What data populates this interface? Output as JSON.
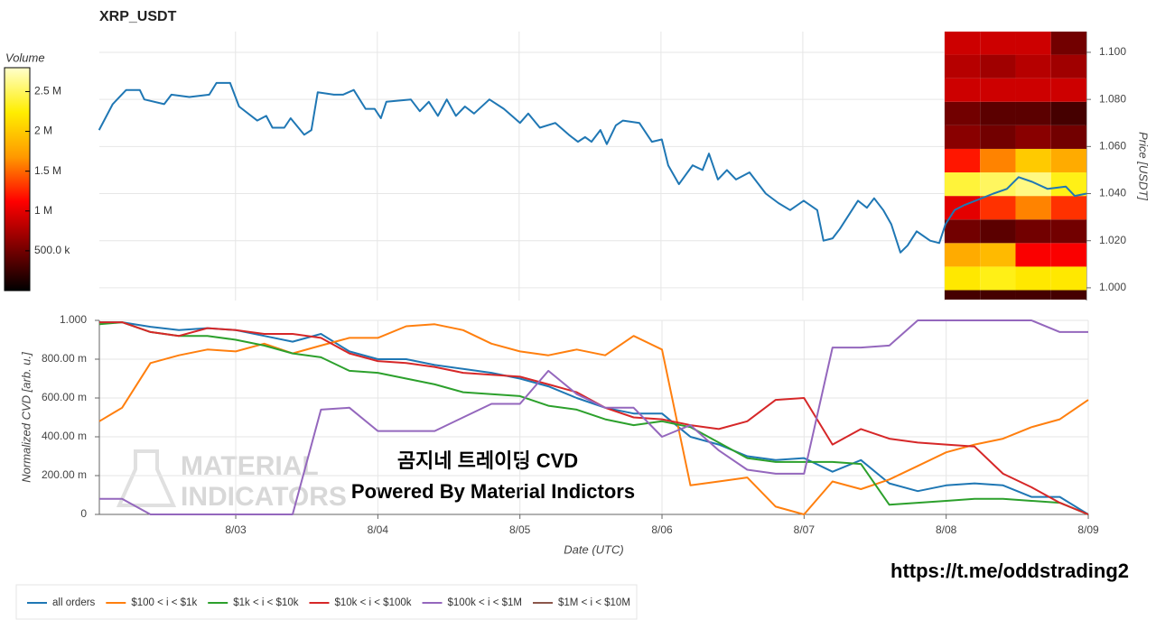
{
  "chart_data": [
    {
      "type": "line",
      "title": "XRP_USDT",
      "ylabel": "Price [USDT]",
      "color": "#1f77b4",
      "grid": true,
      "xlim": [
        2.04,
        9.0
      ],
      "ylim": [
        0.9946,
        1.1088
      ],
      "yticks": [
        {
          "value": 1.0,
          "label": "1.000"
        },
        {
          "value": 1.02,
          "label": "1.020"
        },
        {
          "value": 1.04,
          "label": "1.040"
        },
        {
          "value": 1.06,
          "label": "1.060"
        },
        {
          "value": 1.08,
          "label": "1.080"
        },
        {
          "value": 1.1,
          "label": "1.100"
        }
      ],
      "x": [
        2.038,
        2.134,
        2.229,
        2.325,
        2.357,
        2.497,
        2.548,
        2.675,
        2.815,
        2.866,
        2.962,
        3.025,
        3.153,
        3.217,
        3.261,
        3.344,
        3.389,
        3.484,
        3.535,
        3.58,
        3.694,
        3.758,
        3.834,
        3.917,
        3.981,
        4.025,
        4.064,
        4.236,
        4.299,
        4.363,
        4.427,
        4.49,
        4.554,
        4.618,
        4.682,
        4.79,
        4.892,
        5.006,
        5.064,
        5.146,
        5.255,
        5.35,
        5.414,
        5.465,
        5.51,
        5.573,
        5.618,
        5.682,
        5.732,
        5.847,
        5.936,
        6.006,
        6.051,
        6.127,
        6.223,
        6.293,
        6.338,
        6.401,
        6.465,
        6.529,
        6.624,
        6.739,
        6.828,
        6.911,
        7.006,
        7.102,
        7.146,
        7.21,
        7.261,
        7.389,
        7.452,
        7.503,
        7.567,
        7.624,
        7.688,
        7.739,
        7.803,
        7.898,
        7.962,
        8.006,
        8.07,
        8.134,
        8.217,
        8.344,
        8.439,
        8.522,
        8.618,
        8.726,
        8.854,
        8.917,
        9.0
      ],
      "values": [
        1.067,
        1.078,
        1.084,
        1.084,
        1.08,
        1.078,
        1.082,
        1.081,
        1.082,
        1.087,
        1.087,
        1.077,
        1.071,
        1.073,
        1.068,
        1.068,
        1.072,
        1.065,
        1.067,
        1.083,
        1.082,
        1.082,
        1.084,
        1.076,
        1.076,
        1.072,
        1.079,
        1.08,
        1.075,
        1.079,
        1.073,
        1.08,
        1.073,
        1.077,
        1.074,
        1.08,
        1.076,
        1.07,
        1.074,
        1.068,
        1.07,
        1.065,
        1.062,
        1.064,
        1.062,
        1.067,
        1.061,
        1.069,
        1.071,
        1.07,
        1.062,
        1.063,
        1.052,
        1.044,
        1.052,
        1.05,
        1.057,
        1.046,
        1.05,
        1.046,
        1.049,
        1.04,
        1.036,
        1.033,
        1.037,
        1.033,
        1.02,
        1.021,
        1.025,
        1.037,
        1.034,
        1.038,
        1.033,
        1.027,
        1.015,
        1.018,
        1.024,
        1.02,
        1.019,
        1.027,
        1.033,
        1.035,
        1.037,
        1.04,
        1.042,
        1.047,
        1.045,
        1.042,
        1.043,
        1.039,
        1.04
      ]
    },
    {
      "type": "heatmap",
      "colorbar_label": "Volume",
      "x_edges": [
        8.0,
        8.25,
        8.5,
        8.75,
        9.0
      ],
      "y_edges": [
        0.995,
        0.999,
        1.009,
        1.019,
        1.029,
        1.039,
        1.049,
        1.059,
        1.069,
        1.079,
        1.089,
        1.099,
        1.109
      ],
      "clim": [
        0,
        2800000
      ],
      "colormap": [
        "#000000",
        "#800000",
        "#ff0000",
        "#ff9900",
        "#ffee00",
        "#ffffcc"
      ],
      "cticks": [
        {
          "value": 500000,
          "label": "500.0 k"
        },
        {
          "value": 1000000,
          "label": "1 M"
        },
        {
          "value": 1500000,
          "label": "1.5 M"
        },
        {
          "value": 2000000,
          "label": "2 M"
        },
        {
          "value": 2500000,
          "label": "2.5 M"
        }
      ],
      "values": [
        [
          300000,
          300000,
          300000,
          300000
        ],
        [
          2200000,
          2300000,
          2200000,
          2200000
        ],
        [
          1800000,
          1900000,
          1100000,
          1100000
        ],
        [
          500000,
          400000,
          500000,
          500000
        ],
        [
          1000000,
          1300000,
          1600000,
          1300000
        ],
        [
          2400000,
          2500000,
          2600000,
          2300000
        ],
        [
          1200000,
          1600000,
          2000000,
          1800000
        ],
        [
          600000,
          500000,
          600000,
          500000
        ],
        [
          500000,
          400000,
          400000,
          300000
        ],
        [
          900000,
          900000,
          900000,
          900000
        ],
        [
          800000,
          700000,
          800000,
          700000
        ],
        [
          900000,
          900000,
          900000,
          500000
        ]
      ]
    },
    {
      "type": "line",
      "xlabel": "Date (UTC)",
      "ylabel": "Normalized CVD [arb. u.]",
      "grid": true,
      "legend": "bottom",
      "xlim": [
        2.04,
        9.0
      ],
      "ylim": [
        0,
        1
      ],
      "xticks": [
        {
          "value": 3,
          "label": "8/03"
        },
        {
          "value": 4,
          "label": "8/04"
        },
        {
          "value": 5,
          "label": "8/05"
        },
        {
          "value": 6,
          "label": "8/06"
        },
        {
          "value": 7,
          "label": "8/07"
        },
        {
          "value": 8,
          "label": "8/08"
        },
        {
          "value": 9,
          "label": "8/09"
        }
      ],
      "yticks": [
        0,
        {
          "value": 0.2,
          "label": "200.00 m"
        },
        {
          "value": 0.4,
          "label": "400.00 m"
        },
        {
          "value": 0.6,
          "label": "600.00 m"
        },
        {
          "value": 0.8,
          "label": "800.00 m"
        },
        {
          "value": 1,
          "label": "1.000"
        }
      ],
      "x": [
        2.04,
        2.2,
        2.4,
        2.6,
        2.8,
        3.0,
        3.2,
        3.4,
        3.6,
        3.8,
        4.0,
        4.2,
        4.4,
        4.6,
        4.8,
        5.0,
        5.2,
        5.4,
        5.6,
        5.8,
        6.0,
        6.2,
        6.4,
        6.6,
        6.8,
        7.0,
        7.2,
        7.4,
        7.6,
        7.8,
        8.0,
        8.2,
        8.4,
        8.6,
        8.8,
        9.0
      ],
      "series": [
        {
          "name": "all orders",
          "color": "#1f77b4",
          "values": [
            0.99,
            0.99,
            0.967,
            0.95,
            0.96,
            0.95,
            0.92,
            0.89,
            0.93,
            0.84,
            0.8,
            0.8,
            0.77,
            0.75,
            0.73,
            0.7,
            0.66,
            0.6,
            0.55,
            0.52,
            0.52,
            0.4,
            0.36,
            0.3,
            0.28,
            0.29,
            0.22,
            0.28,
            0.16,
            0.12,
            0.15,
            0.16,
            0.15,
            0.09,
            0.09,
            0.0
          ]
        },
        {
          "name": "$100 < i < $1k",
          "color": "#ff7f0e",
          "values": [
            0.48,
            0.55,
            0.78,
            0.82,
            0.85,
            0.84,
            0.88,
            0.83,
            0.87,
            0.91,
            0.91,
            0.97,
            0.98,
            0.95,
            0.88,
            0.84,
            0.82,
            0.85,
            0.82,
            0.92,
            0.85,
            0.15,
            0.17,
            0.19,
            0.04,
            0.0,
            0.17,
            0.13,
            0.18,
            0.25,
            0.32,
            0.36,
            0.39,
            0.45,
            0.49,
            0.59
          ]
        },
        {
          "name": "$1k < i < $10k",
          "color": "#2ca02c",
          "values": [
            0.98,
            0.99,
            0.94,
            0.92,
            0.92,
            0.9,
            0.87,
            0.83,
            0.81,
            0.74,
            0.73,
            0.7,
            0.67,
            0.63,
            0.62,
            0.61,
            0.56,
            0.54,
            0.49,
            0.46,
            0.48,
            0.45,
            0.37,
            0.29,
            0.27,
            0.27,
            0.27,
            0.26,
            0.05,
            0.06,
            0.07,
            0.08,
            0.08,
            0.07,
            0.06,
            0.0
          ]
        },
        {
          "name": "$10k < i < $100k",
          "color": "#d62728",
          "values": [
            0.99,
            0.99,
            0.94,
            0.92,
            0.96,
            0.95,
            0.93,
            0.93,
            0.91,
            0.83,
            0.79,
            0.78,
            0.76,
            0.73,
            0.72,
            0.71,
            0.67,
            0.63,
            0.55,
            0.5,
            0.49,
            0.46,
            0.44,
            0.48,
            0.59,
            0.6,
            0.36,
            0.44,
            0.39,
            0.37,
            0.36,
            0.35,
            0.21,
            0.14,
            0.06,
            0.0
          ]
        },
        {
          "name": "$100k < i < $1M",
          "color": "#9467bd",
          "values": [
            0.08,
            0.08,
            0,
            0,
            0,
            0,
            0,
            0,
            0.54,
            0.55,
            0.43,
            0.43,
            0.43,
            0.5,
            0.57,
            0.57,
            0.74,
            0.62,
            0.55,
            0.55,
            0.4,
            0.46,
            0.33,
            0.23,
            0.21,
            0.21,
            0.86,
            0.86,
            0.87,
            1.0,
            1.0,
            1.0,
            1.0,
            1.0,
            0.94,
            0.94
          ]
        },
        {
          "name": "$1M < i < $10M",
          "color": "#8c564b"
        }
      ],
      "annotations": {
        "watermark": [
          "MATERIAL",
          "INDICATORS"
        ],
        "overlay": [
          "곰지네 트레이딩 CVD",
          "Powered By Material Indictors"
        ],
        "link": "https://t.me/oddstrading2"
      }
    }
  ]
}
